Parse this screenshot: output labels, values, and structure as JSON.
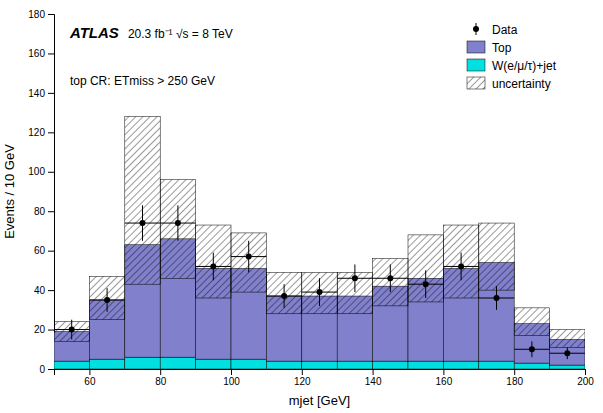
{
  "chart_data": {
    "type": "bar",
    "stacked": true,
    "x_label": "mjet [GeV]",
    "y_label": "Events / 10 GeV",
    "bins": [
      50,
      60,
      70,
      80,
      90,
      100,
      110,
      120,
      130,
      140,
      150,
      160,
      170,
      180,
      190,
      200
    ],
    "series": [
      {
        "name": "W(e/μ/τ)+jet",
        "color": "#00e0e0",
        "values": [
          4,
          5,
          6,
          6,
          5,
          5,
          4,
          4,
          4,
          4,
          4,
          4,
          4,
          3,
          2
        ]
      },
      {
        "name": "Top",
        "color": "#8080cc",
        "values": [
          15,
          30,
          57,
          60,
          46,
          46,
          33,
          33,
          33,
          38,
          42,
          47,
          50,
          20,
          13
        ]
      }
    ],
    "uncertainty": {
      "name": "uncertainty",
      "up": [
        5,
        12,
        65,
        30,
        22,
        18,
        12,
        12,
        12,
        14,
        22,
        22,
        20,
        8,
        5
      ],
      "down": [
        5,
        10,
        20,
        20,
        15,
        12,
        9,
        9,
        9,
        10,
        12,
        15,
        14,
        6,
        4
      ]
    },
    "points": {
      "name": "Data",
      "x": [
        55,
        65,
        75,
        85,
        95,
        105,
        115,
        125,
        135,
        145,
        155,
        165,
        175,
        185,
        195
      ],
      "values": [
        20,
        35,
        74,
        74,
        52,
        57,
        37,
        39,
        46,
        46,
        43,
        52,
        36,
        10,
        8
      ],
      "errors": [
        5,
        6,
        9,
        9,
        7,
        8,
        6,
        7,
        7,
        7,
        7,
        7,
        6,
        4,
        3
      ]
    },
    "annotations": [
      "ATLAS",
      "20.3 fb⁻¹ √s = 8 TeV",
      "top CR: ETmiss > 250 GeV"
    ],
    "xlim": [
      50,
      200
    ],
    "ylim": [
      0,
      180
    ],
    "xticks": [
      60,
      80,
      100,
      120,
      140,
      160,
      180,
      200
    ],
    "yticks": [
      0,
      20,
      40,
      60,
      80,
      100,
      120,
      140,
      160,
      180
    ],
    "grid": false,
    "legend": "upper right"
  }
}
